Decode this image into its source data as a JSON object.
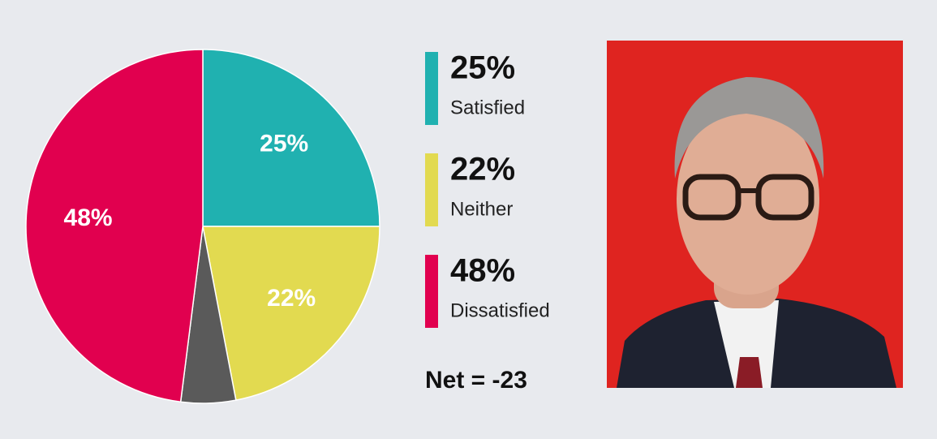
{
  "chart_data": {
    "type": "pie",
    "categories": [
      "Satisfied",
      "Neither",
      null,
      "Dissatisfied"
    ],
    "values": [
      25,
      22,
      5,
      48
    ],
    "value_labels": [
      "25%",
      "22%",
      null,
      "48%"
    ],
    "colors": [
      "#20b1b0",
      "#e2da50",
      "#5a5a5a",
      "#e1004f"
    ],
    "annotation": "Net = -23"
  }
}
